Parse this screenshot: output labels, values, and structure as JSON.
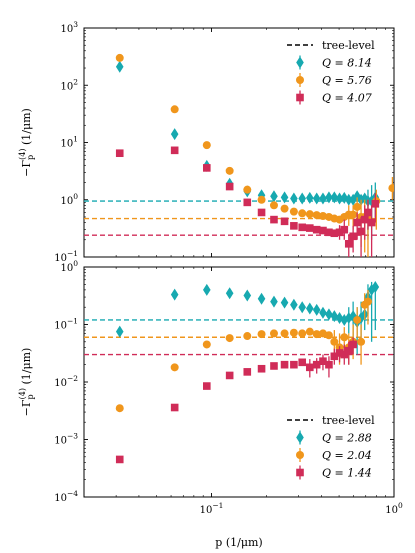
{
  "chart_data": [
    {
      "type": "scatter",
      "panel": "top",
      "xscale": "log",
      "yscale": "log",
      "xlim": [
        0.02,
        1.0
      ],
      "ylim": [
        0.1,
        1000
      ],
      "ylabel": "−Γ_p^(4) (1/μm)",
      "y_ticks": [
        {
          "v": 0.1,
          "label": "10^{-1}"
        },
        {
          "v": 1,
          "label": "10^{0}"
        },
        {
          "v": 10,
          "label": "10^{1}"
        },
        {
          "v": 100,
          "label": "10^{2}"
        },
        {
          "v": 1000,
          "label": "10^{3}"
        }
      ],
      "reference_lines": [
        {
          "legend": "tree-level",
          "color": "#17a9b0",
          "y": 0.95
        },
        {
          "color": "#f0961c",
          "y": 0.47
        },
        {
          "color": "#d02c58",
          "y": 0.24
        }
      ],
      "legend_placement": "top-right",
      "legend_line_label": "tree-level",
      "series": [
        {
          "name": "Q = 8.14",
          "marker": "diamond",
          "color": "#17a9b0",
          "points": [
            {
              "x": 0.0314,
              "y": 210
            },
            {
              "x": 0.0628,
              "y": 14
            },
            {
              "x": 0.0942,
              "y": 3.9
            },
            {
              "x": 0.1257,
              "y": 1.9
            },
            {
              "x": 0.157,
              "y": 1.4
            },
            {
              "x": 0.188,
              "y": 1.2
            },
            {
              "x": 0.2199,
              "y": 1.15
            },
            {
              "x": 0.2513,
              "y": 1.1
            },
            {
              "x": 0.2827,
              "y": 1.05
            },
            {
              "x": 0.314,
              "y": 1.05
            },
            {
              "x": 0.3456,
              "y": 1.08
            },
            {
              "x": 0.377,
              "y": 1.05
            },
            {
              "x": 0.408,
              "y": 1.05
            },
            {
              "x": 0.44,
              "y": 1.1
            },
            {
              "x": 0.471,
              "y": 1.1
            },
            {
              "x": 0.503,
              "y": 1.05
            },
            {
              "x": 0.534,
              "y": 1.08
            },
            {
              "x": 0.565,
              "y": 1.0
            },
            {
              "x": 0.597,
              "y": 1.0
            },
            {
              "x": 0.628,
              "y": 1.15
            },
            {
              "x": 0.66,
              "y": 1.0
            },
            {
              "x": 0.691,
              "y": 1.05
            },
            {
              "x": 0.72,
              "y": 0.95,
              "err": [
                0.2,
                1.5
              ]
            },
            {
              "x": 0.754,
              "y": 0.95,
              "err": [
                0.2,
                1.8
              ]
            },
            {
              "x": 0.79,
              "y": 1.1,
              "err": [
                0.5,
                2.0
              ]
            }
          ]
        },
        {
          "name": "Q = 5.76",
          "marker": "circle",
          "color": "#f0961c",
          "points": [
            {
              "x": 0.0314,
              "y": 300
            },
            {
              "x": 0.0628,
              "y": 38
            },
            {
              "x": 0.0942,
              "y": 9
            },
            {
              "x": 0.1257,
              "y": 3.2
            },
            {
              "x": 0.157,
              "y": 1.5
            },
            {
              "x": 0.188,
              "y": 1.0
            },
            {
              "x": 0.2199,
              "y": 0.8
            },
            {
              "x": 0.2513,
              "y": 0.7
            },
            {
              "x": 0.2827,
              "y": 0.62
            },
            {
              "x": 0.314,
              "y": 0.58
            },
            {
              "x": 0.3456,
              "y": 0.56
            },
            {
              "x": 0.377,
              "y": 0.54
            },
            {
              "x": 0.408,
              "y": 0.52
            },
            {
              "x": 0.44,
              "y": 0.5
            },
            {
              "x": 0.471,
              "y": 0.47
            },
            {
              "x": 0.503,
              "y": 0.45
            },
            {
              "x": 0.534,
              "y": 0.5
            },
            {
              "x": 0.565,
              "y": 0.55,
              "err": [
                0.35,
                0.8
              ]
            },
            {
              "x": 0.597,
              "y": 0.55,
              "err": [
                0.3,
                0.8
              ]
            },
            {
              "x": 0.628,
              "y": 0.75,
              "err": [
                0.4,
                1.1
              ]
            },
            {
              "x": 0.66,
              "y": 0.5,
              "err": [
                0.15,
                1.0
              ]
            },
            {
              "x": 0.691,
              "y": 0.5,
              "err": [
                0.12,
                1.0
              ]
            },
            {
              "x": 0.72,
              "y": 0.5,
              "err": [
                0.1,
                1.0
              ]
            },
            {
              "x": 0.8,
              "y": 0.95,
              "err": [
                0.3,
                1.5
              ]
            },
            {
              "x": 0.98,
              "y": 1.6,
              "err": [
                1.0,
                2.5
              ]
            }
          ]
        },
        {
          "name": "Q = 4.07",
          "marker": "square",
          "color": "#d02c58",
          "points": [
            {
              "x": 0.0314,
              "y": 6.5
            },
            {
              "x": 0.0628,
              "y": 7.3
            },
            {
              "x": 0.0942,
              "y": 3.6
            },
            {
              "x": 0.1257,
              "y": 1.7
            },
            {
              "x": 0.157,
              "y": 0.9
            },
            {
              "x": 0.188,
              "y": 0.6
            },
            {
              "x": 0.2199,
              "y": 0.45
            },
            {
              "x": 0.2513,
              "y": 0.42
            },
            {
              "x": 0.2827,
              "y": 0.35
            },
            {
              "x": 0.314,
              "y": 0.33
            },
            {
              "x": 0.3456,
              "y": 0.32
            },
            {
              "x": 0.377,
              "y": 0.3
            },
            {
              "x": 0.408,
              "y": 0.29
            },
            {
              "x": 0.44,
              "y": 0.27
            },
            {
              "x": 0.471,
              "y": 0.26
            },
            {
              "x": 0.503,
              "y": 0.27,
              "err": [
                0.2,
                0.36
              ]
            },
            {
              "x": 0.534,
              "y": 0.3,
              "err": [
                0.2,
                0.45
              ]
            },
            {
              "x": 0.565,
              "y": 0.17,
              "err": [
                0.1,
                0.25
              ]
            },
            {
              "x": 0.597,
              "y": 0.23,
              "err": [
                0.12,
                0.35
              ]
            },
            {
              "x": 0.628,
              "y": 0.4,
              "err": [
                0.2,
                0.6
              ]
            },
            {
              "x": 0.66,
              "y": 0.28,
              "err": [
                0.1,
                0.5
              ]
            },
            {
              "x": 0.691,
              "y": 0.45,
              "err": [
                0.2,
                0.8
              ]
            },
            {
              "x": 0.72,
              "y": 0.6,
              "err": [
                0.3,
                1.0
              ]
            },
            {
              "x": 0.754,
              "y": 0.4,
              "err": [
                0.1,
                0.8
              ]
            },
            {
              "x": 0.79,
              "y": 0.85,
              "err": [
                0.4,
                1.3
              ]
            }
          ]
        }
      ]
    },
    {
      "type": "scatter",
      "panel": "bottom",
      "xscale": "log",
      "yscale": "log",
      "xlim": [
        0.02,
        1.0
      ],
      "ylim": [
        0.0001,
        1
      ],
      "xlabel": "p (1/μm)",
      "ylabel": "−Γ_p^(4) (1/μm)",
      "x_ticks": [
        {
          "v": 0.1,
          "label": "10^{-1}"
        },
        {
          "v": 1,
          "label": "10^{0}"
        }
      ],
      "y_ticks": [
        {
          "v": 0.0001,
          "label": "10^{-4}"
        },
        {
          "v": 0.001,
          "label": "10^{-3}"
        },
        {
          "v": 0.01,
          "label": "10^{-2}"
        },
        {
          "v": 0.1,
          "label": "10^{-1}"
        },
        {
          "v": 1,
          "label": "10^{0}"
        }
      ],
      "reference_lines": [
        {
          "legend": "tree-level",
          "color": "#17a9b0",
          "y": 0.12
        },
        {
          "color": "#f0961c",
          "y": 0.06
        },
        {
          "color": "#d02c58",
          "y": 0.03
        }
      ],
      "legend_placement": "bottom-right",
      "legend_line_label": "tree-level",
      "series": [
        {
          "name": "Q = 2.88",
          "marker": "diamond",
          "color": "#17a9b0",
          "points": [
            {
              "x": 0.0314,
              "y": 0.075
            },
            {
              "x": 0.0628,
              "y": 0.33
            },
            {
              "x": 0.0942,
              "y": 0.4
            },
            {
              "x": 0.1257,
              "y": 0.35
            },
            {
              "x": 0.157,
              "y": 0.32
            },
            {
              "x": 0.188,
              "y": 0.28
            },
            {
              "x": 0.2199,
              "y": 0.25
            },
            {
              "x": 0.2513,
              "y": 0.24
            },
            {
              "x": 0.2827,
              "y": 0.22
            },
            {
              "x": 0.314,
              "y": 0.2
            },
            {
              "x": 0.3456,
              "y": 0.19
            },
            {
              "x": 0.377,
              "y": 0.18
            },
            {
              "x": 0.408,
              "y": 0.16
            },
            {
              "x": 0.44,
              "y": 0.15
            },
            {
              "x": 0.471,
              "y": 0.14
            },
            {
              "x": 0.503,
              "y": 0.13
            },
            {
              "x": 0.534,
              "y": 0.12
            },
            {
              "x": 0.565,
              "y": 0.13,
              "err": [
                0.07,
                0.2
              ]
            },
            {
              "x": 0.597,
              "y": 0.14,
              "err": [
                0.06,
                0.25
              ]
            },
            {
              "x": 0.628,
              "y": 0.11,
              "err": [
                0.03,
                0.2
              ]
            },
            {
              "x": 0.66,
              "y": 0.13,
              "err": [
                0.05,
                0.25
              ]
            },
            {
              "x": 0.691,
              "y": 0.15,
              "err": [
                0.08,
                0.3
              ]
            },
            {
              "x": 0.72,
              "y": 0.3,
              "err": [
                0.15,
                0.5
              ]
            },
            {
              "x": 0.754,
              "y": 0.4,
              "err": [
                0.05,
                0.55
              ]
            },
            {
              "x": 0.79,
              "y": 0.45,
              "err": [
                0.08,
                0.55
              ]
            }
          ]
        },
        {
          "name": "Q = 2.04",
          "marker": "circle",
          "color": "#f0961c",
          "points": [
            {
              "x": 0.0314,
              "y": 0.0035
            },
            {
              "x": 0.0628,
              "y": 0.018
            },
            {
              "x": 0.0942,
              "y": 0.045
            },
            {
              "x": 0.1257,
              "y": 0.058
            },
            {
              "x": 0.157,
              "y": 0.063
            },
            {
              "x": 0.188,
              "y": 0.068
            },
            {
              "x": 0.2199,
              "y": 0.07
            },
            {
              "x": 0.2513,
              "y": 0.07
            },
            {
              "x": 0.2827,
              "y": 0.072
            },
            {
              "x": 0.314,
              "y": 0.07
            },
            {
              "x": 0.3456,
              "y": 0.075
            },
            {
              "x": 0.377,
              "y": 0.068
            },
            {
              "x": 0.408,
              "y": 0.07
            },
            {
              "x": 0.44,
              "y": 0.065
            },
            {
              "x": 0.471,
              "y": 0.05,
              "err": [
                0.025,
                0.08
              ]
            },
            {
              "x": 0.503,
              "y": 0.04,
              "err": [
                0.02,
                0.07
              ]
            },
            {
              "x": 0.534,
              "y": 0.06,
              "err": [
                0.03,
                0.09
              ]
            },
            {
              "x": 0.565,
              "y": 0.04,
              "err": [
                0.02,
                0.07
              ]
            },
            {
              "x": 0.597,
              "y": 0.05,
              "err": [
                0.025,
                0.1
              ]
            },
            {
              "x": 0.628,
              "y": 0.12,
              "err": [
                0.06,
                0.2
              ]
            },
            {
              "x": 0.66,
              "y": 0.05,
              "err": [
                0.02,
                0.1
              ]
            },
            {
              "x": 0.691,
              "y": 0.22,
              "err": [
                0.12,
                0.35
              ]
            },
            {
              "x": 0.72,
              "y": 0.25,
              "err": [
                0.1,
                0.4
              ]
            }
          ]
        },
        {
          "name": "Q = 1.44",
          "marker": "square",
          "color": "#d02c58",
          "points": [
            {
              "x": 0.0314,
              "y": 0.00045
            },
            {
              "x": 0.0628,
              "y": 0.0036
            },
            {
              "x": 0.0942,
              "y": 0.0085
            },
            {
              "x": 0.1257,
              "y": 0.013
            },
            {
              "x": 0.157,
              "y": 0.015
            },
            {
              "x": 0.188,
              "y": 0.017
            },
            {
              "x": 0.2199,
              "y": 0.019
            },
            {
              "x": 0.2513,
              "y": 0.02
            },
            {
              "x": 0.2827,
              "y": 0.02
            },
            {
              "x": 0.314,
              "y": 0.022
            },
            {
              "x": 0.3456,
              "y": 0.018,
              "err": [
                0.012,
                0.025
              ]
            },
            {
              "x": 0.377,
              "y": 0.02,
              "err": [
                0.014,
                0.026
              ]
            },
            {
              "x": 0.408,
              "y": 0.023,
              "err": [
                0.016,
                0.03
              ]
            },
            {
              "x": 0.44,
              "y": 0.02,
              "err": [
                0.012,
                0.028
              ]
            },
            {
              "x": 0.471,
              "y": 0.028,
              "err": [
                0.02,
                0.038
              ]
            },
            {
              "x": 0.503,
              "y": 0.032,
              "err": [
                0.022,
                0.042
              ]
            },
            {
              "x": 0.534,
              "y": 0.03,
              "err": [
                0.02,
                0.045
              ]
            },
            {
              "x": 0.565,
              "y": 0.035,
              "err": [
                0.02,
                0.05
              ]
            },
            {
              "x": 0.597,
              "y": 0.045,
              "err": [
                0.03,
                0.06
              ]
            }
          ]
        }
      ]
    }
  ]
}
